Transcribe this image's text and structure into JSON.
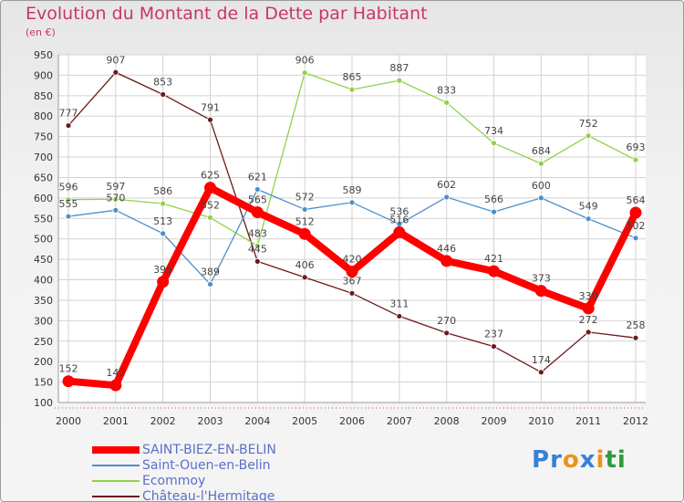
{
  "header": {
    "title": "Evolution du Montant de la Dette par Habitant",
    "unit": "(en €)"
  },
  "logo": {
    "text": "Proxiti",
    "letter_colors": [
      "#3a7fd6",
      "#3a7fd6",
      "#e8931c",
      "#3a7fd6",
      "#e8931c",
      "#2f9a3c",
      "#2f9a3c"
    ]
  },
  "chart_data": {
    "type": "line",
    "x": [
      "2000",
      "2001",
      "2002",
      "2003",
      "2004",
      "2005",
      "2006",
      "2007",
      "2008",
      "2009",
      "2010",
      "2011",
      "2012"
    ],
    "ylim": [
      100,
      950
    ],
    "yticks": [
      100,
      150,
      200,
      250,
      300,
      350,
      400,
      450,
      500,
      550,
      600,
      650,
      700,
      750,
      800,
      850,
      900,
      950
    ],
    "grid": true,
    "legend_position": "bottom-left",
    "series": [
      {
        "name": "SAINT-BIEZ-EN-BELIN",
        "color": "#ff0000",
        "values": [
          152,
          142,
          395,
          625,
          565,
          512,
          420,
          516,
          446,
          421,
          373,
          330,
          564
        ],
        "labels": [
          "152",
          "142",
          "395",
          "625",
          "565",
          "512",
          "420",
          "516",
          "446",
          "421",
          "373",
          "330",
          "564"
        ]
      },
      {
        "name": "Saint-Ouen-en-Belin",
        "color": "#4d8fca",
        "values": [
          555,
          570,
          513,
          389,
          621,
          572,
          589,
          536,
          602,
          566,
          600,
          549,
          502
        ],
        "labels": [
          "555",
          "570",
          "513",
          "389",
          "621",
          "572",
          "589",
          "536",
          "602",
          "566",
          "600",
          "549",
          "502"
        ]
      },
      {
        "name": "Ecommoy",
        "color": "#8fd24a",
        "values": [
          596,
          597,
          586,
          552,
          483,
          906,
          865,
          887,
          833,
          734,
          684,
          752,
          693
        ],
        "labels": [
          "596",
          "597",
          "586",
          "552",
          "483",
          "906",
          "865",
          "887",
          "833",
          "734",
          "684",
          "752",
          "693"
        ]
      },
      {
        "name": "Château-l'Hermitage",
        "color": "#6a1a1a",
        "values": [
          777,
          907,
          853,
          791,
          445,
          406,
          367,
          311,
          270,
          237,
          174,
          272,
          258
        ],
        "labels": [
          "777",
          "907",
          "853",
          "791",
          "445",
          "406",
          "367",
          "311",
          "270",
          "237",
          "174",
          "272",
          "258"
        ]
      }
    ]
  }
}
